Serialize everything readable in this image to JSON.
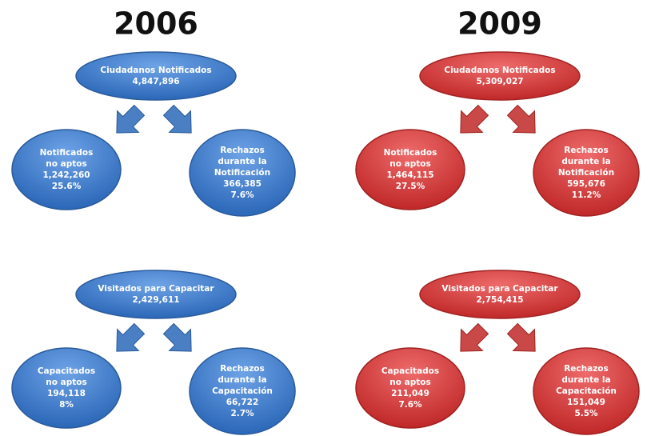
{
  "columns": [
    {
      "year": "2006",
      "groups": [
        {
          "top": {
            "lines": [
              "Ciudadanos Notificados",
              "4,847,896"
            ]
          },
          "left": {
            "lines": [
              "Notificados",
              "no aptos",
              "1,242,260",
              "25.6%"
            ]
          },
          "right": {
            "lines": [
              "Rechazos",
              "durante la",
              "Notificación",
              "366,385",
              "7.6%"
            ]
          }
        },
        {
          "top": {
            "lines": [
              "Visitados para Capacitar",
              "2,429,611"
            ]
          },
          "left": {
            "lines": [
              "Capacitados",
              "no aptos",
              "194,118",
              "8%"
            ]
          },
          "right": {
            "lines": [
              "Rechazos",
              "durante la",
              "Capacitación",
              "66,722",
              "2.7%"
            ]
          }
        }
      ]
    },
    {
      "year": "2009",
      "groups": [
        {
          "top": {
            "lines": [
              "Ciudadanos Notificados",
              "5,309,027"
            ]
          },
          "left": {
            "lines": [
              "Notificados",
              "no aptos",
              "1,464,115",
              "27.5%"
            ]
          },
          "right": {
            "lines": [
              "Rechazos",
              "durante la",
              "Notificación",
              "595,676",
              "11.2%"
            ]
          }
        },
        {
          "top": {
            "lines": [
              "Visitados para Capacitar",
              "2,754,415"
            ]
          },
          "left": {
            "lines": [
              "Capacitados",
              "no aptos",
              "211,049",
              "7.6%"
            ]
          },
          "right": {
            "lines": [
              "Rechazos",
              "durante la",
              "Capacitación",
              "151,049",
              "5.5%"
            ]
          }
        }
      ]
    }
  ]
}
